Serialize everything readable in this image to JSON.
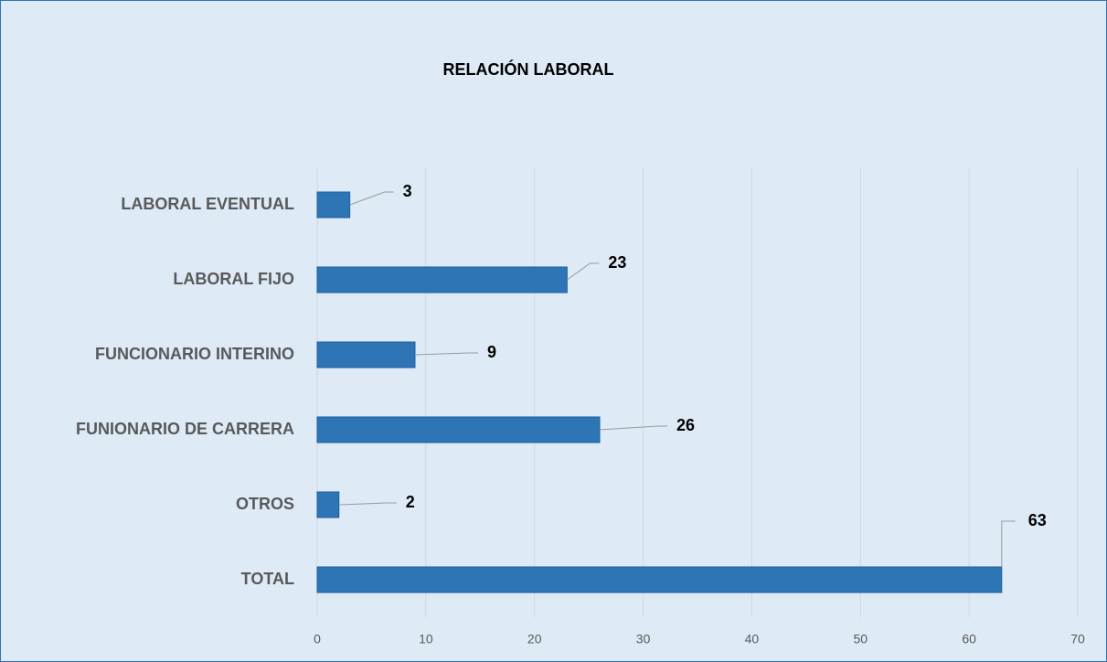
{
  "chart_data": {
    "type": "bar",
    "orientation": "horizontal",
    "title": "RELACIÓN LABORAL",
    "categories": [
      "LABORAL EVENTUAL",
      "LABORAL FIJO",
      "FUNCIONARIO INTERINO",
      "FUNIONARIO DE CARRERA",
      "OTROS",
      "TOTAL"
    ],
    "values": [
      3,
      23,
      9,
      26,
      2,
      63
    ],
    "color": "#2e75b6",
    "xlim": [
      0,
      70
    ],
    "xticks": [
      0,
      10,
      20,
      30,
      40,
      50,
      60,
      70
    ],
    "grid": true
  }
}
